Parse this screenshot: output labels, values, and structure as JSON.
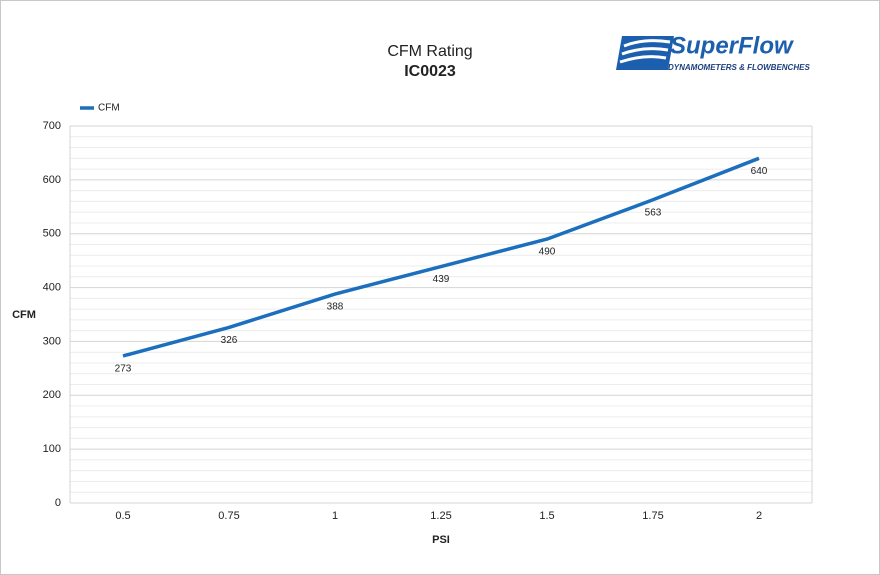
{
  "chart_data": {
    "type": "line",
    "title": "CFM Rating",
    "subtitle": "IC0023",
    "x_label": "PSI",
    "y_label": "CFM",
    "categories": [
      "0.5",
      "0.75",
      "1",
      "1.25",
      "1.5",
      "1.75",
      "2"
    ],
    "series": [
      {
        "name": "CFM",
        "color": "#1b6fbd",
        "values": [
          273,
          326,
          388,
          439,
          490,
          563,
          640
        ]
      }
    ],
    "ylim": [
      0,
      700
    ],
    "yticks": [
      0,
      100,
      200,
      300,
      400,
      500,
      600,
      700
    ],
    "minor_yticks": [
      20,
      40,
      60,
      80,
      120,
      140,
      160,
      180,
      220,
      240,
      260,
      280,
      320,
      340,
      360,
      380,
      420,
      440,
      460,
      480,
      520,
      540,
      560,
      580,
      620,
      640,
      660,
      680
    ],
    "grid": true,
    "legend": "top-left",
    "data_labels": true
  },
  "logo": {
    "name": "SuperFlow",
    "tagline": "DYNAMOMETERS & FLOWBENCHES"
  }
}
